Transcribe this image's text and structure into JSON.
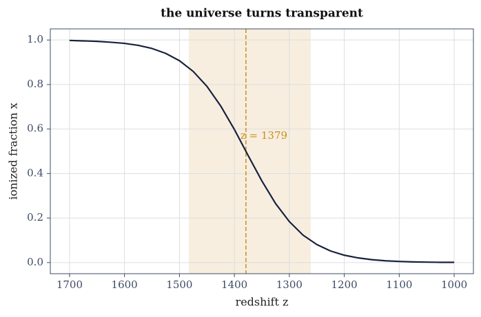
{
  "chart_data": {
    "type": "line",
    "title": "the universe turns transparent",
    "x_label": "redshift z",
    "y_label": "ionized fraction x",
    "x": [
      1700,
      1675,
      1650,
      1625,
      1600,
      1575,
      1550,
      1525,
      1500,
      1475,
      1450,
      1425,
      1400,
      1375,
      1350,
      1325,
      1300,
      1275,
      1250,
      1225,
      1200,
      1175,
      1150,
      1125,
      1100,
      1075,
      1050,
      1025,
      1000
    ],
    "values": [
      0.998,
      0.996,
      0.994,
      0.99,
      0.985,
      0.976,
      0.962,
      0.94,
      0.907,
      0.859,
      0.792,
      0.704,
      0.598,
      0.481,
      0.367,
      0.265,
      0.184,
      0.123,
      0.081,
      0.052,
      0.033,
      0.021,
      0.013,
      0.008,
      0.005,
      0.003,
      0.002,
      0.001,
      0.001
    ],
    "color": "#16213e",
    "shaded_region": [
      1483,
      1261
    ],
    "shaded_color": "#f7eedf",
    "vline": 1379,
    "vline_color": "#c8901e",
    "annotation": "z = 1379",
    "xlim": [
      1735,
      965
    ],
    "ylim": [
      -0.05,
      1.05
    ],
    "xticks": [
      1700,
      1600,
      1500,
      1400,
      1300,
      1200,
      1100,
      1000
    ],
    "yticks": [
      {
        "value": 0,
        "label": "0.0"
      },
      0.2,
      0.4,
      0.6,
      0.8,
      {
        "value": 1,
        "label": "1.0"
      }
    ],
    "grid": true
  }
}
